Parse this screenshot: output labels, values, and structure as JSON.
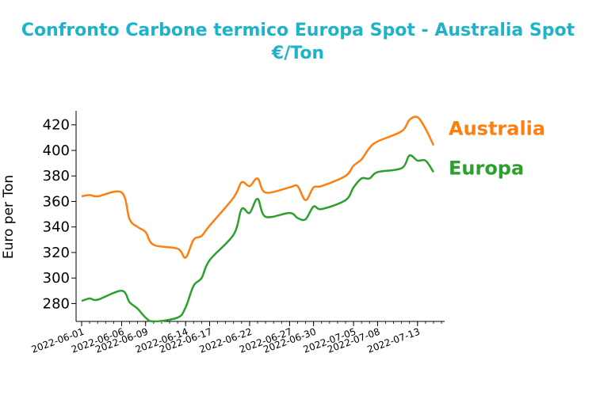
{
  "chart_data": {
    "type": "line",
    "title_line1": "Confronto Carbone termico Europa Spot - Australia Spot",
    "title_line2": "€/Ton",
    "xlabel": "",
    "ylabel": "Euro per Ton",
    "ylim": [
      266,
      431
    ],
    "yticks": [
      280,
      300,
      320,
      340,
      360,
      380,
      400,
      420
    ],
    "ytick_labels": [
      "280",
      "300",
      "320",
      "340",
      "360",
      "380",
      "400",
      "420"
    ],
    "xticks": [
      "2022-06-01",
      "2022-06-06",
      "2022-06-09",
      "2022-06-14",
      "2022-06-17",
      "2022-06-22",
      "2022-06-27",
      "2022-06-30",
      "2022-07-05",
      "2022-07-08",
      "2022-07-13"
    ],
    "grid": false,
    "legend": "inline labels at line ends",
    "dates": [
      "2022-06-01",
      "2022-06-02",
      "2022-06-03",
      "2022-06-06",
      "2022-06-07",
      "2022-06-08",
      "2022-06-09",
      "2022-06-10",
      "2022-06-13",
      "2022-06-14",
      "2022-06-15",
      "2022-06-16",
      "2022-06-17",
      "2022-06-20",
      "2022-06-21",
      "2022-06-22",
      "2022-06-23",
      "2022-06-24",
      "2022-06-27",
      "2022-06-28",
      "2022-06-29",
      "2022-06-30",
      "2022-07-01",
      "2022-07-04",
      "2022-07-05",
      "2022-07-06",
      "2022-07-07",
      "2022-07-08",
      "2022-07-11",
      "2022-07-12",
      "2022-07-13",
      "2022-07-14",
      "2022-07-15"
    ],
    "series": [
      {
        "name": "Australia",
        "color": "#ff7f0e",
        "values": [
          364,
          365,
          364,
          367,
          346,
          340,
          336,
          326,
          323,
          316,
          330,
          333,
          341,
          363,
          375,
          372,
          378,
          367,
          371,
          372,
          361,
          371,
          372,
          380,
          388,
          393,
          402,
          407,
          415,
          424,
          426,
          417,
          404
        ]
      },
      {
        "name": "Europa",
        "color": "#2ca02c",
        "values": [
          282,
          284,
          283,
          290,
          281,
          276,
          269,
          266,
          269,
          277,
          294,
          300,
          314,
          334,
          354,
          351,
          362,
          348,
          351,
          347,
          346,
          356,
          354,
          361,
          371,
          378,
          378,
          383,
          386,
          396,
          392,
          392,
          383
        ]
      }
    ]
  }
}
